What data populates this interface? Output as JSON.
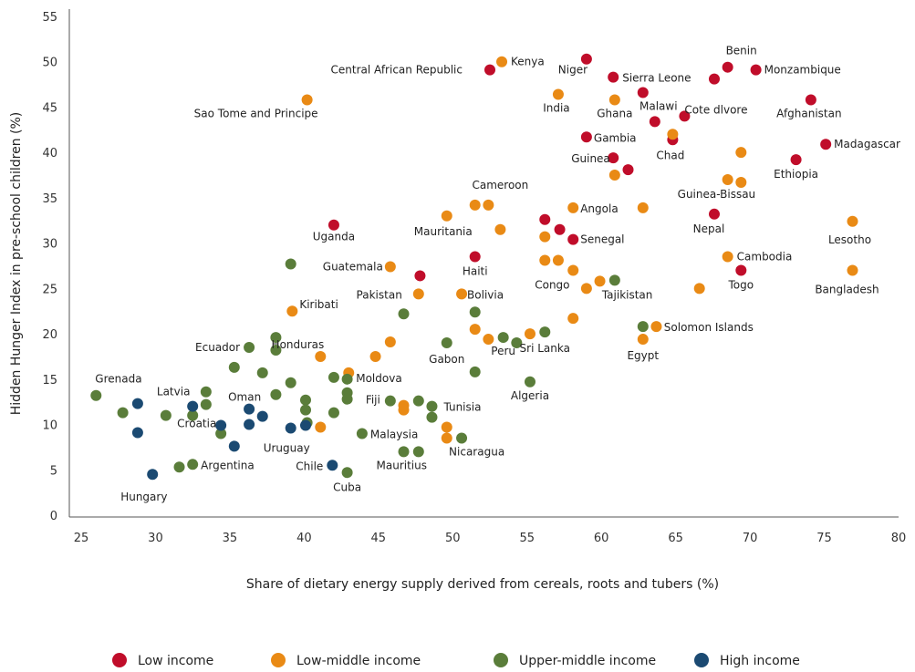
{
  "chart_data": {
    "type": "scatter",
    "xlabel": "Share of dietary energy supply derived from cereals, roots and tubers (%)",
    "ylabel": "Hidden Hunger Index in pre-school children (%)",
    "xlim": [
      25,
      80
    ],
    "ylim": [
      0,
      55
    ],
    "xticks": [
      25,
      30,
      35,
      40,
      45,
      50,
      55,
      60,
      65,
      70,
      75,
      80
    ],
    "yticks": [
      0,
      5,
      10,
      15,
      20,
      25,
      30,
      35,
      40,
      45,
      50,
      55
    ],
    "grid": false,
    "legend_position": "bottom",
    "series": [
      {
        "name": "Low income",
        "color": "#c00d2a",
        "points": [
          {
            "x": 42.0,
            "y": 32.0,
            "label": "Uganda"
          },
          {
            "x": 47.8,
            "y": 26.4,
            "label": ""
          },
          {
            "x": 51.5,
            "y": 28.5,
            "label": "Haiti"
          },
          {
            "x": 52.5,
            "y": 49.1,
            "label": "Central African Republic"
          },
          {
            "x": 56.2,
            "y": 32.6,
            "label": ""
          },
          {
            "x": 57.2,
            "y": 31.5,
            "label": ""
          },
          {
            "x": 58.1,
            "y": 30.4,
            "label": "Senegal"
          },
          {
            "x": 59.0,
            "y": 50.3,
            "label": "Niger"
          },
          {
            "x": 59.0,
            "y": 41.7,
            "label": "Gambia"
          },
          {
            "x": 60.8,
            "y": 48.3,
            "label": "Sierra Leone"
          },
          {
            "x": 60.8,
            "y": 39.4,
            "label": "Guinea"
          },
          {
            "x": 61.8,
            "y": 38.1,
            "label": ""
          },
          {
            "x": 62.8,
            "y": 46.6,
            "label": "Malawi"
          },
          {
            "x": 63.6,
            "y": 43.4,
            "label": ""
          },
          {
            "x": 64.8,
            "y": 41.4,
            "label": "Chad"
          },
          {
            "x": 65.6,
            "y": 44.0,
            "label": "Cote dlvore"
          },
          {
            "x": 67.6,
            "y": 48.1,
            "label": ""
          },
          {
            "x": 67.6,
            "y": 33.2,
            "label": "Nepal"
          },
          {
            "x": 68.5,
            "y": 49.4,
            "label": "Benin"
          },
          {
            "x": 69.4,
            "y": 27.0,
            "label": "Togo"
          },
          {
            "x": 70.4,
            "y": 49.1,
            "label": "Monzambique"
          },
          {
            "x": 73.1,
            "y": 39.2,
            "label": "Ethiopia"
          },
          {
            "x": 74.1,
            "y": 45.8,
            "label": "Afghanistan"
          },
          {
            "x": 75.1,
            "y": 40.9,
            "label": "Madagascar"
          }
        ]
      },
      {
        "name": "Low-middle income",
        "color": "#e98a15",
        "points": [
          {
            "x": 40.2,
            "y": 45.8,
            "label": "Sao Tome and Principe"
          },
          {
            "x": 39.2,
            "y": 22.5,
            "label": "Kiribati"
          },
          {
            "x": 41.1,
            "y": 17.5,
            "label": "Honduras"
          },
          {
            "x": 43.0,
            "y": 15.7,
            "label": "Moldova"
          },
          {
            "x": 41.1,
            "y": 9.7,
            "label": ""
          },
          {
            "x": 44.8,
            "y": 17.5,
            "label": ""
          },
          {
            "x": 45.8,
            "y": 27.4,
            "label": "Guatemala"
          },
          {
            "x": 45.8,
            "y": 19.1,
            "label": ""
          },
          {
            "x": 46.7,
            "y": 12.1,
            "label": ""
          },
          {
            "x": 46.7,
            "y": 11.6,
            "label": ""
          },
          {
            "x": 47.7,
            "y": 24.4,
            "label": "Pakistan"
          },
          {
            "x": 49.6,
            "y": 33.0,
            "label": "Mauritania"
          },
          {
            "x": 49.6,
            "y": 9.7,
            "label": ""
          },
          {
            "x": 49.6,
            "y": 8.5,
            "label": ""
          },
          {
            "x": 50.6,
            "y": 24.4,
            "label": "Bolivia"
          },
          {
            "x": 51.5,
            "y": 34.2,
            "label": ""
          },
          {
            "x": 51.5,
            "y": 20.5,
            "label": ""
          },
          {
            "x": 52.4,
            "y": 34.2,
            "label": "Cameroon"
          },
          {
            "x": 52.4,
            "y": 19.4,
            "label": ""
          },
          {
            "x": 53.2,
            "y": 31.5,
            "label": ""
          },
          {
            "x": 53.3,
            "y": 50.0,
            "label": "Kenya"
          },
          {
            "x": 55.2,
            "y": 20.0,
            "label": ""
          },
          {
            "x": 56.2,
            "y": 30.7,
            "label": ""
          },
          {
            "x": 56.2,
            "y": 28.1,
            "label": ""
          },
          {
            "x": 57.1,
            "y": 28.1,
            "label": ""
          },
          {
            "x": 57.1,
            "y": 46.4,
            "label": "India"
          },
          {
            "x": 58.1,
            "y": 33.9,
            "label": "Angola"
          },
          {
            "x": 58.1,
            "y": 27.0,
            "label": "Congo"
          },
          {
            "x": 58.1,
            "y": 21.7,
            "label": ""
          },
          {
            "x": 59.0,
            "y": 25.0,
            "label": ""
          },
          {
            "x": 59.9,
            "y": 25.8,
            "label": ""
          },
          {
            "x": 60.9,
            "y": 45.8,
            "label": "Ghana"
          },
          {
            "x": 60.9,
            "y": 37.5,
            "label": ""
          },
          {
            "x": 62.8,
            "y": 33.9,
            "label": ""
          },
          {
            "x": 62.8,
            "y": 19.4,
            "label": "Egypt"
          },
          {
            "x": 63.7,
            "y": 20.8,
            "label": ""
          },
          {
            "x": 64.8,
            "y": 42.0,
            "label": ""
          },
          {
            "x": 66.6,
            "y": 25.0,
            "label": ""
          },
          {
            "x": 68.5,
            "y": 37.0,
            "label": "Guinea-Bissau"
          },
          {
            "x": 68.5,
            "y": 28.5,
            "label": "Cambodia"
          },
          {
            "x": 69.4,
            "y": 40.0,
            "label": ""
          },
          {
            "x": 69.4,
            "y": 36.7,
            "label": ""
          },
          {
            "x": 76.9,
            "y": 32.4,
            "label": "Lesotho"
          },
          {
            "x": 76.9,
            "y": 27.0,
            "label": "Bangladesh"
          }
        ]
      },
      {
        "name": "Upper-middle income",
        "color": "#5a7d3a",
        "points": [
          {
            "x": 26.0,
            "y": 13.2,
            "label": "Grenada"
          },
          {
            "x": 27.8,
            "y": 11.3,
            "label": ""
          },
          {
            "x": 30.7,
            "y": 11.0,
            "label": ""
          },
          {
            "x": 31.6,
            "y": 5.3,
            "label": ""
          },
          {
            "x": 32.5,
            "y": 11.0,
            "label": ""
          },
          {
            "x": 32.5,
            "y": 5.6,
            "label": "Argentina"
          },
          {
            "x": 33.4,
            "y": 13.6,
            "label": ""
          },
          {
            "x": 33.4,
            "y": 12.2,
            "label": ""
          },
          {
            "x": 34.4,
            "y": 9.0,
            "label": ""
          },
          {
            "x": 35.3,
            "y": 16.3,
            "label": ""
          },
          {
            "x": 36.3,
            "y": 18.5,
            "label": "Ecuador"
          },
          {
            "x": 37.2,
            "y": 15.7,
            "label": ""
          },
          {
            "x": 38.1,
            "y": 19.6,
            "label": ""
          },
          {
            "x": 38.1,
            "y": 18.2,
            "label": ""
          },
          {
            "x": 38.1,
            "y": 13.3,
            "label": ""
          },
          {
            "x": 39.1,
            "y": 27.7,
            "label": ""
          },
          {
            "x": 39.1,
            "y": 14.6,
            "label": ""
          },
          {
            "x": 40.1,
            "y": 12.7,
            "label": ""
          },
          {
            "x": 40.1,
            "y": 11.6,
            "label": ""
          },
          {
            "x": 40.2,
            "y": 10.2,
            "label": ""
          },
          {
            "x": 42.0,
            "y": 15.2,
            "label": ""
          },
          {
            "x": 42.0,
            "y": 11.3,
            "label": ""
          },
          {
            "x": 42.9,
            "y": 15.0,
            "label": ""
          },
          {
            "x": 42.9,
            "y": 13.5,
            "label": ""
          },
          {
            "x": 42.9,
            "y": 12.8,
            "label": ""
          },
          {
            "x": 42.9,
            "y": 4.7,
            "label": "Cuba"
          },
          {
            "x": 43.9,
            "y": 9.0,
            "label": "Malaysia"
          },
          {
            "x": 45.8,
            "y": 12.6,
            "label": "Fiji"
          },
          {
            "x": 46.7,
            "y": 22.2,
            "label": ""
          },
          {
            "x": 46.7,
            "y": 7.0,
            "label": "Mauritius"
          },
          {
            "x": 47.7,
            "y": 12.6,
            "label": ""
          },
          {
            "x": 47.7,
            "y": 7.0,
            "label": ""
          },
          {
            "x": 48.6,
            "y": 12.0,
            "label": "Tunisia"
          },
          {
            "x": 48.6,
            "y": 10.8,
            "label": ""
          },
          {
            "x": 49.6,
            "y": 19.0,
            "label": "Gabon"
          },
          {
            "x": 50.6,
            "y": 8.5,
            "label": "Nicaragua"
          },
          {
            "x": 51.5,
            "y": 22.4,
            "label": ""
          },
          {
            "x": 51.5,
            "y": 15.8,
            "label": ""
          },
          {
            "x": 53.4,
            "y": 19.6,
            "label": "Peru"
          },
          {
            "x": 54.3,
            "y": 19.0,
            "label": ""
          },
          {
            "x": 55.2,
            "y": 14.7,
            "label": "Algeria"
          },
          {
            "x": 56.2,
            "y": 20.2,
            "label": "Sri Lanka"
          },
          {
            "x": 60.9,
            "y": 25.9,
            "label": "Tajikistan"
          },
          {
            "x": 62.8,
            "y": 20.8,
            "label": "Solomon Islands"
          }
        ]
      },
      {
        "name": "High income",
        "color": "#1b4a72",
        "points": [
          {
            "x": 28.8,
            "y": 12.3,
            "label": "Latvia"
          },
          {
            "x": 28.8,
            "y": 9.1,
            "label": ""
          },
          {
            "x": 29.8,
            "y": 4.5,
            "label": "Hungary"
          },
          {
            "x": 32.5,
            "y": 12.0,
            "label": "Croatia"
          },
          {
            "x": 34.4,
            "y": 9.9,
            "label": ""
          },
          {
            "x": 35.3,
            "y": 7.6,
            "label": ""
          },
          {
            "x": 36.3,
            "y": 11.7,
            "label": "Oman"
          },
          {
            "x": 36.3,
            "y": 10.0,
            "label": ""
          },
          {
            "x": 37.2,
            "y": 10.9,
            "label": ""
          },
          {
            "x": 39.1,
            "y": 9.6,
            "label": "Uruguay"
          },
          {
            "x": 40.1,
            "y": 9.9,
            "label": ""
          },
          {
            "x": 41.9,
            "y": 5.5,
            "label": "Chile"
          }
        ]
      }
    ]
  }
}
